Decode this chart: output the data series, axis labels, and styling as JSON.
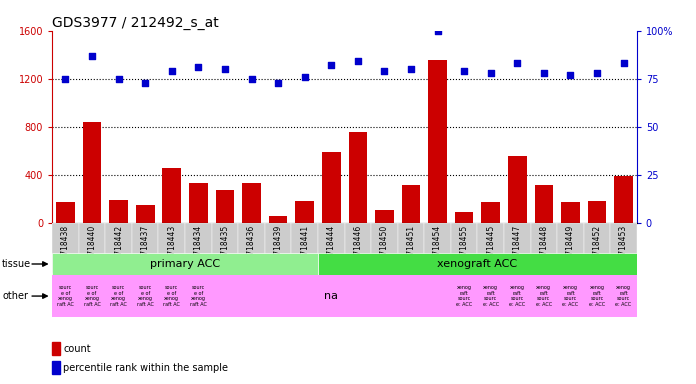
{
  "title": "GDS3977 / 212492_s_at",
  "samples": [
    "GSM718438",
    "GSM718440",
    "GSM718442",
    "GSM718437",
    "GSM718443",
    "GSM718434",
    "GSM718435",
    "GSM718436",
    "GSM718439",
    "GSM718441",
    "GSM718444",
    "GSM718446",
    "GSM718450",
    "GSM718451",
    "GSM718454",
    "GSM718455",
    "GSM718445",
    "GSM718447",
    "GSM718448",
    "GSM718449",
    "GSM718452",
    "GSM718453"
  ],
  "counts": [
    170,
    840,
    190,
    150,
    460,
    330,
    270,
    330,
    55,
    185,
    590,
    760,
    110,
    315,
    1360,
    90,
    175,
    560,
    315,
    175,
    185,
    390
  ],
  "percentiles": [
    75,
    87,
    75,
    73,
    79,
    81,
    80,
    75,
    73,
    76,
    82,
    84,
    79,
    80,
    100,
    79,
    78,
    83,
    78,
    77,
    78,
    83
  ],
  "primary_acc_count": 10,
  "xenograft_acc_count": 12,
  "source_xenograft_count": 6,
  "na_count": 9,
  "xenog_raft_count": 7,
  "tissue_primary_color": "#90EE90",
  "tissue_xenograft_color": "#44DD44",
  "other_pink_color": "#FF99FF",
  "bar_color": "#CC0000",
  "dot_color": "#0000CC",
  "xticklabel_bg": "#CCCCCC",
  "ylim_left": [
    0,
    1600
  ],
  "ylim_right": [
    0,
    100
  ],
  "yticks_left": [
    0,
    400,
    800,
    1200,
    1600
  ],
  "yticks_right": [
    0,
    25,
    50,
    75,
    100
  ],
  "grid_dotted_at": [
    400,
    800,
    1200
  ],
  "title_fontsize": 10,
  "tick_fontsize": 7,
  "label_fontsize": 7,
  "row_label_fontsize": 7,
  "tissue_text_fontsize": 8,
  "legend_fontsize": 7
}
